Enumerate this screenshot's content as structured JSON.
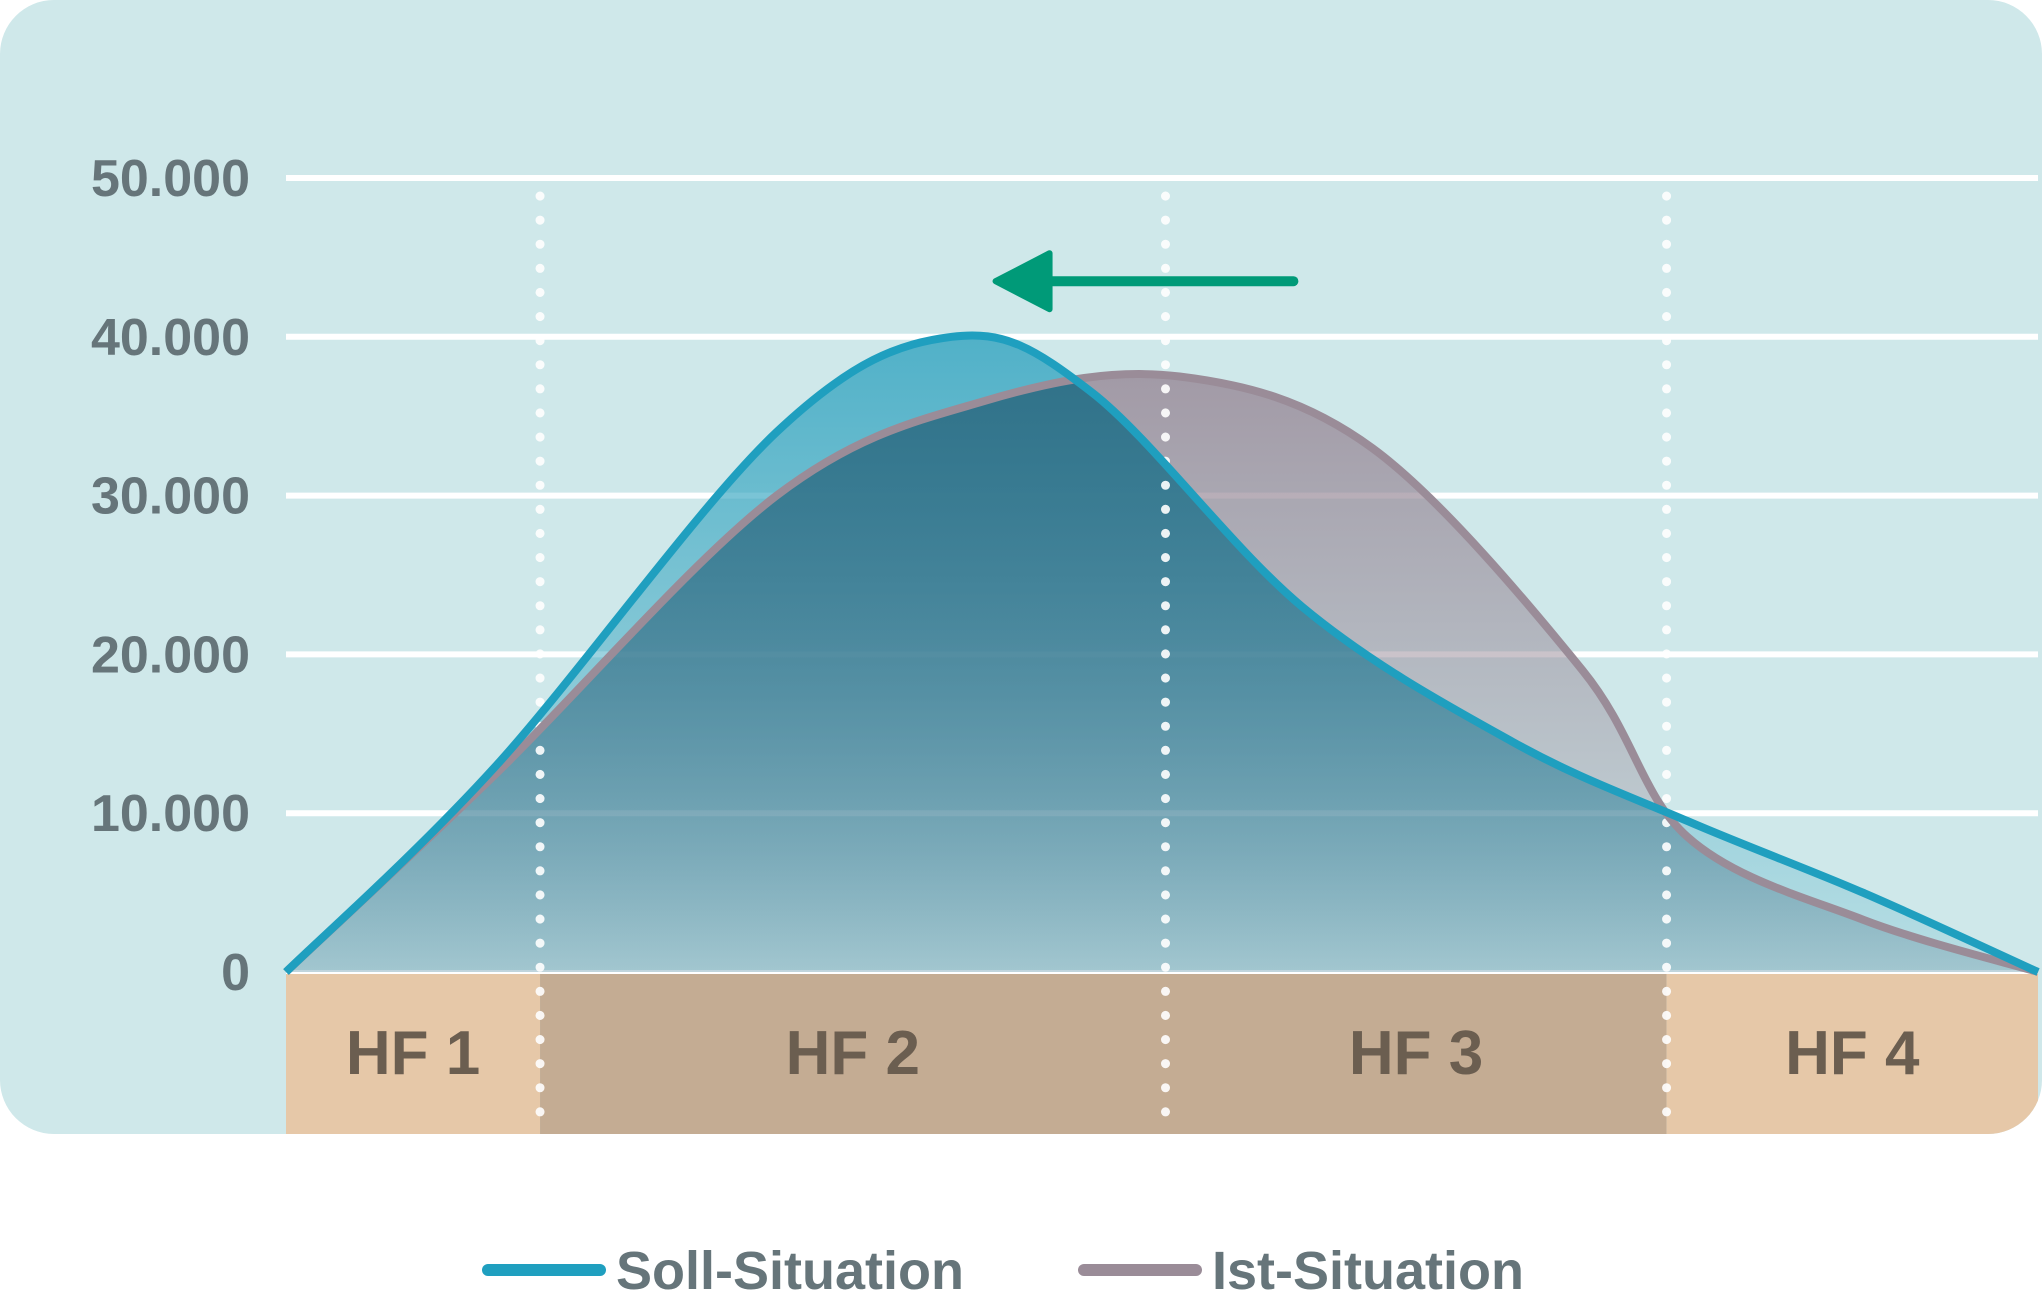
{
  "chart_data": {
    "type": "area",
    "title": "",
    "xlabel": "",
    "ylabel": "",
    "ylim": [
      0,
      50000
    ],
    "y_ticks": [
      {
        "value": 0,
        "label": "0"
      },
      {
        "value": 10000,
        "label": "10.000"
      },
      {
        "value": 20000,
        "label": "20.000"
      },
      {
        "value": 30000,
        "label": "30.000"
      },
      {
        "value": 40000,
        "label": "40.000"
      },
      {
        "value": 50000,
        "label": "50.000"
      }
    ],
    "grid": true,
    "x_range": [
      0,
      100
    ],
    "bands": [
      {
        "label": "HF 1",
        "from": 0,
        "to": 14.5,
        "color": "#e6c8a8"
      },
      {
        "label": "HF 2",
        "from": 14.5,
        "to": 50.2,
        "color": "#c4ac93"
      },
      {
        "label": "HF 3",
        "from": 50.2,
        "to": 78.8,
        "color": "#c4ac93"
      },
      {
        "label": "HF 4",
        "from": 78.8,
        "to": 100,
        "color": "#e6c8a8"
      }
    ],
    "series": [
      {
        "name": "Soll-Situation",
        "color": "#1f9fbf",
        "x": [
          0,
          12,
          28,
          38,
          46,
          58,
          70,
          80,
          90,
          100
        ],
        "values": [
          0,
          13000,
          34000,
          40000,
          36500,
          23000,
          14500,
          9500,
          5000,
          0
        ]
      },
      {
        "name": "Ist-Situation",
        "color": "#9a8c98",
        "x": [
          0,
          12,
          28,
          40,
          51,
          62,
          74,
          80,
          90,
          100
        ],
        "values": [
          0,
          12500,
          30000,
          36000,
          37500,
          33000,
          19000,
          8500,
          3300,
          0
        ]
      }
    ],
    "annotation": {
      "type": "arrow",
      "direction": "left",
      "color": "#009a78",
      "from_x": 57.5,
      "to_x": 40.5,
      "y": 43500
    },
    "legend": {
      "position": "bottom-center"
    }
  }
}
